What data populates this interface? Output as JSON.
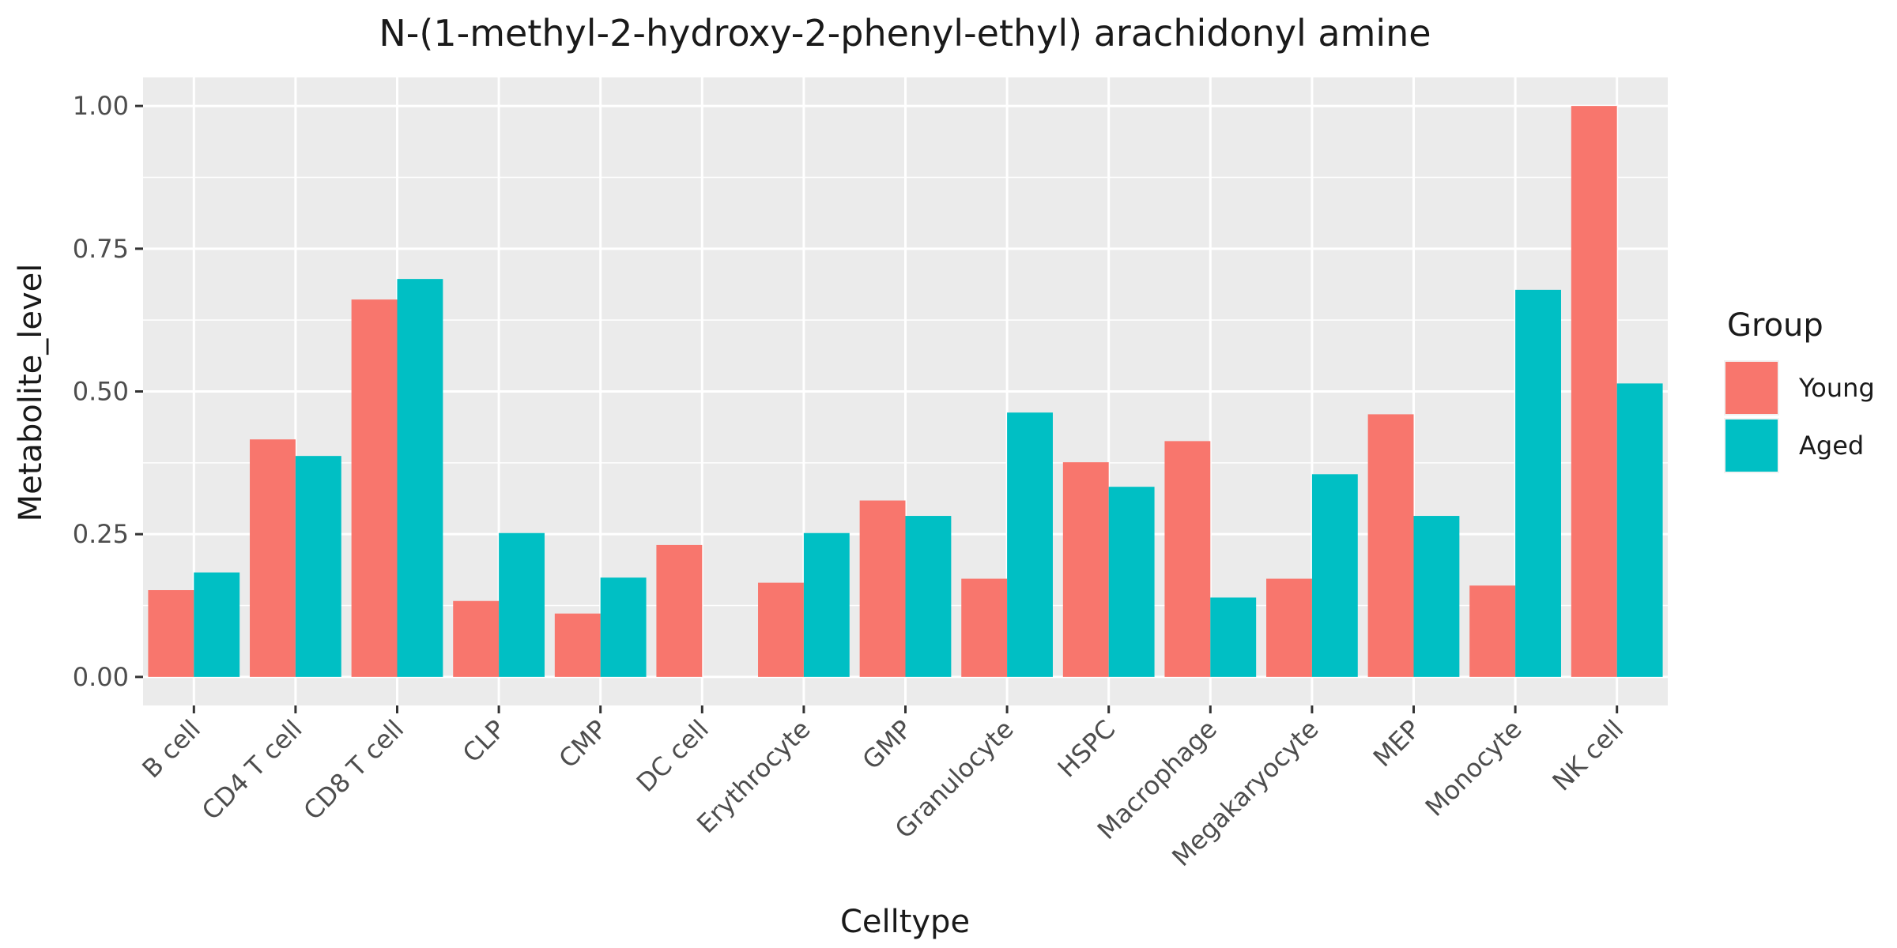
{
  "chart_data": {
    "type": "bar",
    "title": "N-(1-methyl-2-hydroxy-2-phenyl-ethyl) arachidonyl amine",
    "xlabel": "Celltype",
    "ylabel": "Metabolite_level",
    "ylim": [
      -0.05,
      1.05
    ],
    "yticks": [
      0.0,
      0.25,
      0.5,
      0.75,
      1.0
    ],
    "ytick_labels": [
      "0.00",
      "0.25",
      "0.50",
      "0.75",
      "1.00"
    ],
    "grid": true,
    "legend": {
      "title": "Group",
      "position": "right"
    },
    "categories": [
      "B cell",
      "CD4 T cell",
      "CD8 T cell",
      "CLP",
      "CMP",
      "DC cell",
      "Erythrocyte",
      "GMP",
      "Granulocyte",
      "HSPC",
      "Macrophage",
      "Megakaryocyte",
      "MEP",
      "Monocyte",
      "NK cell"
    ],
    "series": [
      {
        "name": "Young",
        "color": "#F8766D",
        "values": [
          0.152,
          0.416,
          0.661,
          0.133,
          0.111,
          0.231,
          0.165,
          0.309,
          0.172,
          0.376,
          0.413,
          0.172,
          0.46,
          0.16,
          1.0
        ]
      },
      {
        "name": "Aged",
        "color": "#00BFC4",
        "values": [
          0.183,
          0.387,
          0.697,
          0.252,
          0.174,
          0.0,
          0.252,
          0.282,
          0.463,
          0.333,
          0.139,
          0.355,
          0.282,
          0.678,
          0.514
        ]
      }
    ]
  }
}
